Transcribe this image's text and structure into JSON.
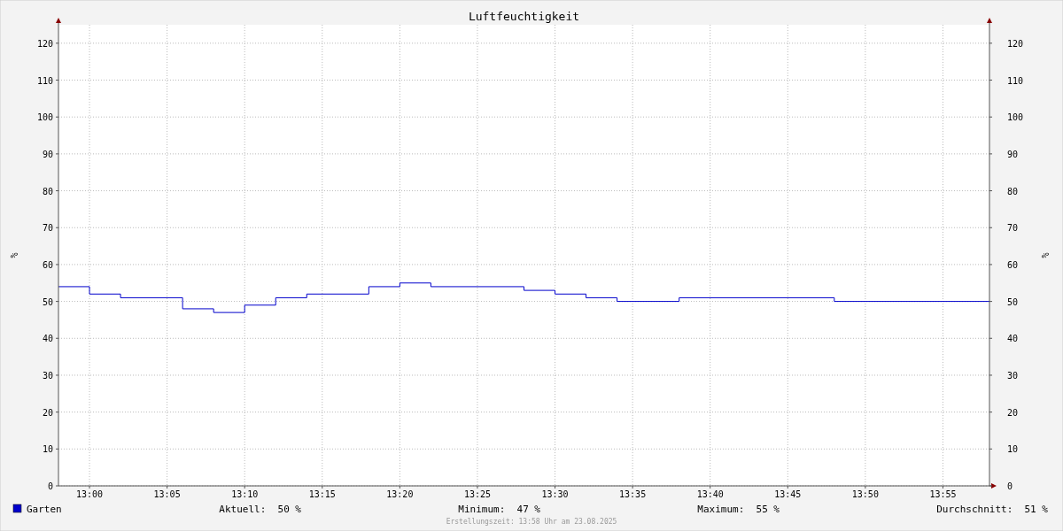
{
  "chart_data": {
    "type": "step",
    "title": "Luftfeuchtigkeit",
    "ylabel": "%",
    "y2label": "%",
    "x": [
      "2025-08-23T12:58",
      "2025-08-23T13:00",
      "2025-08-23T13:02",
      "2025-08-23T13:06",
      "2025-08-23T13:08",
      "2025-08-23T13:10",
      "2025-08-23T13:12",
      "2025-08-23T13:14",
      "2025-08-23T13:18",
      "2025-08-23T13:20",
      "2025-08-23T13:22",
      "2025-08-23T13:28",
      "2025-08-23T13:30",
      "2025-08-23T13:32",
      "2025-08-23T13:34",
      "2025-08-23T13:38",
      "2025-08-23T13:48",
      "2025-08-23T13:58"
    ],
    "series": [
      {
        "name": "Garten",
        "color": "#0000cc",
        "values": [
          54,
          52,
          51,
          48,
          47,
          49,
          51,
          52,
          54,
          55,
          54,
          53,
          52,
          51,
          50,
          51,
          50,
          50
        ]
      }
    ],
    "xlim": [
      "2025-08-23T12:58",
      "2025-08-23T13:58"
    ],
    "xticks": [
      {
        "value": "2025-08-23T13:00",
        "label": "13:00"
      },
      {
        "value": "2025-08-23T13:05",
        "label": "13:05"
      },
      {
        "value": "2025-08-23T13:10",
        "label": "13:10"
      },
      {
        "value": "2025-08-23T13:15",
        "label": "13:15"
      },
      {
        "value": "2025-08-23T13:20",
        "label": "13:20"
      },
      {
        "value": "2025-08-23T13:25",
        "label": "13:25"
      },
      {
        "value": "2025-08-23T13:30",
        "label": "13:30"
      },
      {
        "value": "2025-08-23T13:35",
        "label": "13:35"
      },
      {
        "value": "2025-08-23T13:40",
        "label": "13:40"
      },
      {
        "value": "2025-08-23T13:45",
        "label": "13:45"
      },
      {
        "value": "2025-08-23T13:50",
        "label": "13:50"
      },
      {
        "value": "2025-08-23T13:55",
        "label": "13:55"
      }
    ],
    "ylim": [
      0,
      125
    ],
    "yticks": [
      0,
      10,
      20,
      30,
      40,
      50,
      60,
      70,
      80,
      90,
      100,
      110,
      120
    ],
    "y2lim": [
      0,
      125
    ],
    "y2ticks": [
      0,
      10,
      20,
      30,
      40,
      50,
      60,
      70,
      80,
      90,
      100,
      110,
      120
    ],
    "grid": true,
    "legend": "bottom left",
    "annotations": [
      "Aktuell:  50 %",
      "Minimum:  47 %",
      "Maximum:  55 %",
      "Durchschnitt:  51 %",
      "Erstellungszeit: 13:58 Uhr am 23.08.2025"
    ]
  }
}
